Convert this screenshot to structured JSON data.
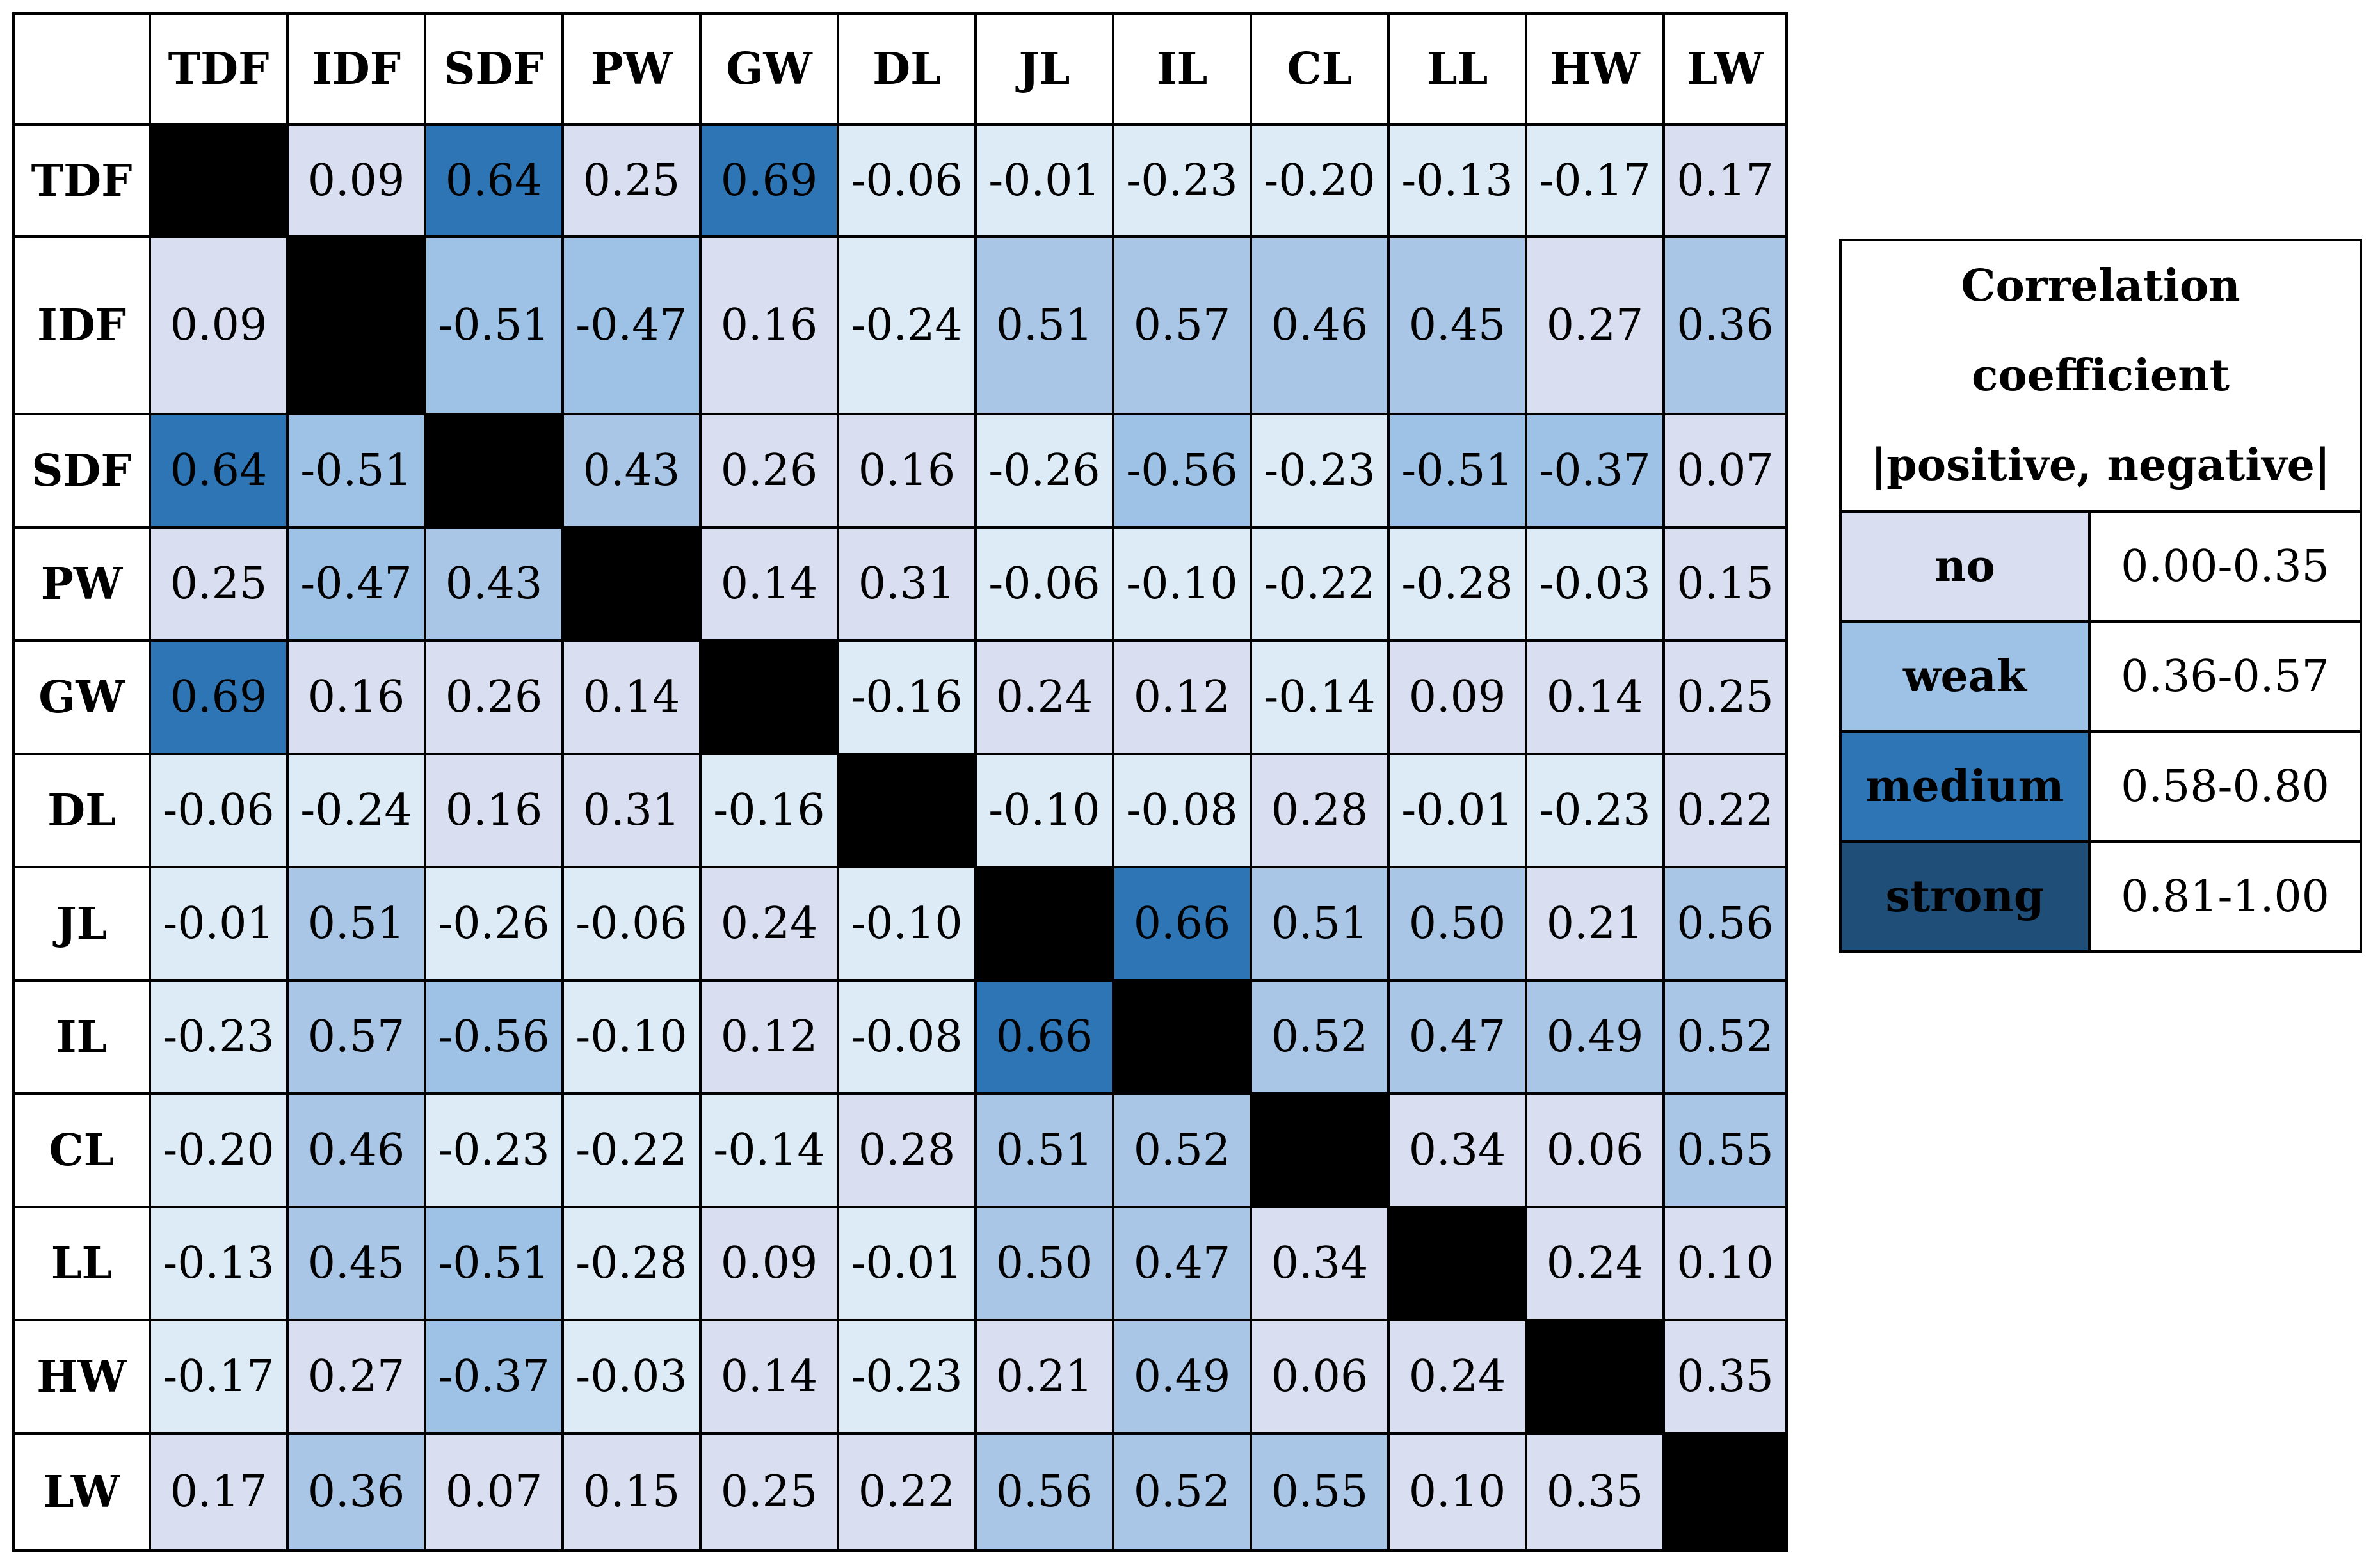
{
  "chart_data": {
    "type": "heatmap",
    "variables": [
      "TDF",
      "IDF",
      "SDF",
      "PW",
      "GW",
      "DL",
      "JL",
      "IL",
      "CL",
      "LL",
      "HW",
      "LW"
    ],
    "matrix": [
      [
        null,
        "0.09",
        "0.64",
        "0.25",
        "0.69",
        "-0.06",
        "-0.01",
        "-0.23",
        "-0.20",
        "-0.13",
        "-0.17",
        "0.17"
      ],
      [
        "0.09",
        null,
        "-0.51",
        "-0.47",
        "0.16",
        "-0.24",
        "0.51",
        "0.57",
        "0.46",
        "0.45",
        "0.27",
        "0.36"
      ],
      [
        "0.64",
        "-0.51",
        null,
        "0.43",
        "0.26",
        "0.16",
        "-0.26",
        "-0.56",
        "-0.23",
        "-0.51",
        "-0.37",
        "0.07"
      ],
      [
        "0.25",
        "-0.47",
        "0.43",
        null,
        "0.14",
        "0.31",
        "-0.06",
        "-0.10",
        "-0.22",
        "-0.28",
        "-0.03",
        "0.15"
      ],
      [
        "0.69",
        "0.16",
        "0.26",
        "0.14",
        null,
        "-0.16",
        "0.24",
        "0.12",
        "-0.14",
        "0.09",
        "0.14",
        "0.25"
      ],
      [
        "-0.06",
        "-0.24",
        "0.16",
        "0.31",
        "-0.16",
        null,
        "-0.10",
        "-0.08",
        "0.28",
        "-0.01",
        "-0.23",
        "0.22"
      ],
      [
        "-0.01",
        "0.51",
        "-0.26",
        "-0.06",
        "0.24",
        "-0.10",
        null,
        "0.66",
        "0.51",
        "0.50",
        "0.21",
        "0.56"
      ],
      [
        "-0.23",
        "0.57",
        "-0.56",
        "-0.10",
        "0.12",
        "-0.08",
        "0.66",
        null,
        "0.52",
        "0.47",
        "0.49",
        "0.52"
      ],
      [
        "-0.20",
        "0.46",
        "-0.23",
        "-0.22",
        "-0.14",
        "0.28",
        "0.51",
        "0.52",
        null,
        "0.34",
        "0.06",
        "0.55"
      ],
      [
        "-0.13",
        "0.45",
        "-0.51",
        "-0.28",
        "0.09",
        "-0.01",
        "0.50",
        "0.47",
        "0.34",
        null,
        "0.24",
        "0.10"
      ],
      [
        "-0.17",
        "0.27",
        "-0.37",
        "-0.03",
        "0.14",
        "-0.23",
        "0.21",
        "0.49",
        "0.06",
        "0.24",
        null,
        "0.35"
      ],
      [
        "0.17",
        "0.36",
        "0.07",
        "0.15",
        "0.25",
        "0.22",
        "0.56",
        "0.52",
        "0.55",
        "0.10",
        "0.35",
        null
      ]
    ],
    "diagonal_color": "#000000",
    "colors": {
      "no_positive": "#d9dff0",
      "no_negative": "#ddebf6",
      "weak_positive": "#a9c6e6",
      "weak_negative": "#9ec1e6",
      "medium": "#2e75b6",
      "strong": "#1f4e79"
    }
  },
  "legend": {
    "title_line1": "Correlation coefficient",
    "title_line2": "|positive, negative|",
    "entries": [
      {
        "label": "no",
        "range": "0.00-0.35",
        "color": "#d9dff0"
      },
      {
        "label": "weak",
        "range": "0.36-0.57",
        "color": "#9ec1e6"
      },
      {
        "label": "medium",
        "range": "0.58-0.80",
        "color": "#2e75b6"
      },
      {
        "label": "strong",
        "range": "0.81-1.00",
        "color": "#1f4e79"
      }
    ]
  }
}
